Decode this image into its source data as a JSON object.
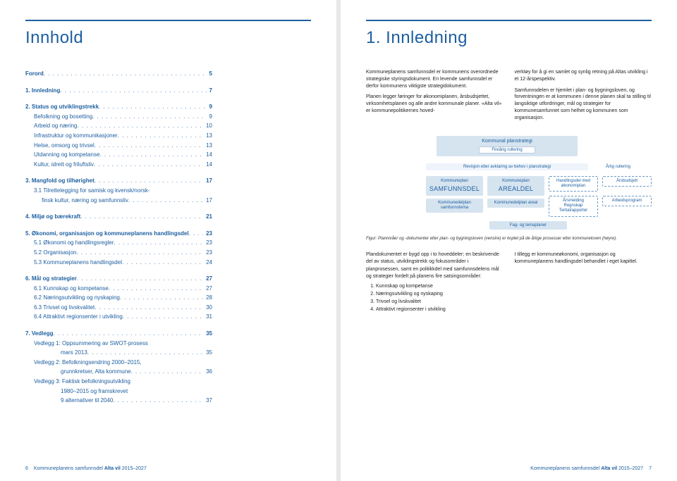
{
  "left_page": {
    "heading": "Innhold",
    "footer": {
      "page_num": "6",
      "title": "Kommuneplanens samfunnsdel",
      "sub": "Alta vil",
      "years": "2015–2027"
    }
  },
  "right_page": {
    "heading": "1. Innledning",
    "para1a": "Kommuneplanens samfunnsdel er kommunens overordnede strategiske styringsdokument. En levende samfunnsdel er derfor kommunens viktigste strategidokument.",
    "para1b": "Planen legger føringer for økonomiplanen, årsbudsjettet, virksomhetsplanen og alle andre kommunale planer. «Alta vil» er kommunepolitikernes hoved-",
    "para2a": "verktøy for å gi en samlet og synlig retning på Altas utvikling i et 12-årspespektiv.",
    "para2b": "Samfunnsdelen er hjemlet i plan- og bygningsloven, og forventningen er at kommunen i denne planen skal ta stilling til langsiktige utfordringer, mål og strategier for kommunesamfunnet som helhet og kommunen som organisasjon.",
    "lower_left_p": "Plandokumentet er bygd opp i to hoveddeler; en beskrivende del av status, utviklingstrekk og fokusområder i planprosessen, samt en politikkdel med samfunnsdelens mål og strategier fordelt på planens fire satsingsområder:",
    "lower_right_p": "I tillegg er kommuneøkonomi, organisasjon og kommuneplanens handlingsdel behandlet i eget kapittel.",
    "list": [
      "Kunnskap og kompetanse",
      "Næringsutvikling og nyskaping",
      "Trivsel og livskvalitet",
      "Attraktivt regionsenter i utvikling"
    ],
    "footer": {
      "title": "Kommuneplanens samfunnsdel",
      "sub": "Alta vil",
      "years": "2015–2027",
      "page_num": "7"
    }
  },
  "toc": [
    {
      "type": "row",
      "bold": true,
      "label": "Forord",
      "page": "5"
    },
    {
      "type": "gap"
    },
    {
      "type": "row",
      "bold": true,
      "label": "1. Innledning",
      "page": "7"
    },
    {
      "type": "gap"
    },
    {
      "type": "row",
      "bold": true,
      "label": "2. Status og utviklingstrekk",
      "page": "9"
    },
    {
      "type": "row",
      "indent": 1,
      "label": "Befolkning og bosetting",
      "page": "9"
    },
    {
      "type": "row",
      "indent": 1,
      "label": "Arbeid og næring",
      "page": "10"
    },
    {
      "type": "row",
      "indent": 1,
      "label": "Infrastruktur og kommunikasjoner",
      "page": "13"
    },
    {
      "type": "row",
      "indent": 1,
      "label": "Helse, omsorg og trivsel",
      "page": "13"
    },
    {
      "type": "row",
      "indent": 1,
      "label": "Utdanning og kompetanse",
      "page": "14"
    },
    {
      "type": "row",
      "indent": 1,
      "label": "Kultur, idrett og friluftsliv",
      "page": "14"
    },
    {
      "type": "gap"
    },
    {
      "type": "row",
      "bold": true,
      "label": "3. Mangfold og tilhørighet",
      "page": "17"
    },
    {
      "type": "row",
      "indent": 1,
      "label": "3.1 Tilrettelegging for samisk og kvensk/norsk-",
      "page": "",
      "nodots": true
    },
    {
      "type": "row",
      "indent": 1,
      "label": "     finsk kultur, næring og samfunnsliv",
      "page": "17"
    },
    {
      "type": "gap"
    },
    {
      "type": "row",
      "bold": true,
      "label": "4. Miljø og bærekraft",
      "page": "21"
    },
    {
      "type": "gap"
    },
    {
      "type": "row",
      "bold": true,
      "label": "5. Økonomi, organisasjon og kommuneplanens handlingsdel",
      "page": "23"
    },
    {
      "type": "row",
      "indent": 1,
      "label": "5.1 Økonomi og handlingsregler",
      "page": "23"
    },
    {
      "type": "row",
      "indent": 1,
      "label": "5.2 Organisasjon",
      "page": "23"
    },
    {
      "type": "row",
      "indent": 1,
      "label": "5.3 Kommuneplanens handlingsdel",
      "page": "24"
    },
    {
      "type": "gap"
    },
    {
      "type": "row",
      "bold": true,
      "label": "6. Mål og strategier",
      "page": "27"
    },
    {
      "type": "row",
      "indent": 1,
      "label": "6.1 Kunnskap og kompetanse",
      "page": "27"
    },
    {
      "type": "row",
      "indent": 1,
      "label": "6.2 Næringsutvikling og nyskaping",
      "page": "28"
    },
    {
      "type": "row",
      "indent": 1,
      "label": "6.3 Trivsel og livskvalitet",
      "page": "30"
    },
    {
      "type": "row",
      "indent": 1,
      "label": "6.4 Attraktivt regionsenter i utvikling",
      "page": "31"
    },
    {
      "type": "gap"
    },
    {
      "type": "row",
      "bold": true,
      "label": "7. Vedlegg",
      "page": "35"
    },
    {
      "type": "row",
      "indent": 1,
      "label": "Vedlegg 1: Oppsummering av SWOT-prosess",
      "page": "",
      "nodots": true
    },
    {
      "type": "row",
      "indent": 2,
      "label": "mars 2013",
      "page": "35"
    },
    {
      "type": "row",
      "indent": 1,
      "label": "Vedlegg 2: Befolkningsendring 2000–2015,",
      "page": "",
      "nodots": true
    },
    {
      "type": "row",
      "indent": 2,
      "label": "grunnkretser, Alta kommune",
      "page": "36"
    },
    {
      "type": "row",
      "indent": 1,
      "label": "Vedlegg 3: Faktisk befolkningsutvikling",
      "page": "",
      "nodots": true
    },
    {
      "type": "row",
      "indent": 2,
      "label": "1980–2015 og framskrevet",
      "page": "",
      "nodots": true
    },
    {
      "type": "row",
      "indent": 2,
      "label": "9 alternativer til 2040",
      "page": "37"
    }
  ],
  "diagram": {
    "type": "flowchart",
    "background_color": "#ffffff",
    "block_fill": "#d6e4f0",
    "block_text_color": "#1e5fa0",
    "dashed_border_color": "#6a99c4",
    "top": "Kommunal planstrategi",
    "top_sub": "Fireårig rullering",
    "revision": "Revisjon etter avklaring av behov i planstrategi",
    "arlig": "Årlig rullering",
    "blocks_left": [
      {
        "small": "Kommuneplan",
        "big": "SAMFUNNSDEL"
      },
      {
        "small": "Kommunedelplan samfunnstema",
        "big": ""
      }
    ],
    "blocks_mid": [
      {
        "small": "Kommuneplan",
        "big": "AREALDEL"
      },
      {
        "small": "Kommunedelplan areal",
        "big": ""
      }
    ],
    "blocks_right_top": [
      {
        "text": "Handlingsdel med økonomiplan",
        "dash": true
      },
      {
        "text": "Årsbudsjett",
        "dash": true
      }
    ],
    "blocks_right_bot": [
      {
        "text": "Årsmelding\nRegnskap\nTertialrapporter",
        "dash": true
      },
      {
        "text": "Arbeidsprogram",
        "dash": true
      }
    ],
    "fag": "Fag- og temaplaner",
    "caption": "Figur: Plannivåer og -dokumenter etter plan- og bygningsloven (venstre) er koplet på de årlige prosesser etter kommuneloven (høyre)."
  }
}
